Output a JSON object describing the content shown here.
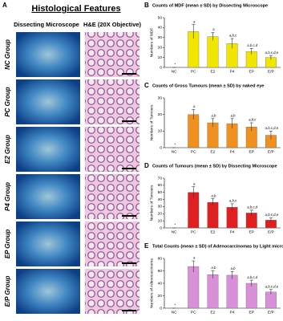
{
  "figure": {
    "panel": "A",
    "title": "Histological Features",
    "col_headers": [
      "Dissecting Microscope",
      "H&E (20X Objective)"
    ],
    "groups": [
      "NC Group",
      "PC Group",
      "E2 Group",
      "P4 Group",
      "EP Group",
      "E/P Group"
    ]
  },
  "chart_data": [
    {
      "type": "bar",
      "panel": "B",
      "title": "Counts of MDF (mean ± SD) by Dissecting Microscope",
      "y_label": "Numbers of MDF",
      "categories": [
        "NC",
        "PC",
        "E2",
        "P4",
        "EP",
        "E/P"
      ],
      "values": [
        0,
        36,
        31,
        24,
        16,
        10
      ],
      "errors": [
        0,
        7,
        4,
        5,
        3,
        2
      ],
      "bar_labels": [
        "*",
        "a",
        "a",
        "a,b,c",
        "a,b,c,d",
        "a,b,c,d,e"
      ],
      "color": "#f2e600",
      "ylim": [
        0,
        50
      ],
      "yticks": [
        0,
        10,
        20,
        30,
        40,
        50
      ]
    },
    {
      "type": "bar",
      "panel": "C",
      "title": "Counts of Gross Tumours (mean ± SD) by naked eye",
      "y_label": "Numbers of Tumours",
      "categories": [
        "NC",
        "PC",
        "E2",
        "P4",
        "EP",
        "E/P"
      ],
      "values": [
        0,
        20,
        15,
        14.5,
        12.5,
        7.5
      ],
      "errors": [
        0,
        3,
        2.5,
        3,
        2.5,
        2.5
      ],
      "bar_labels": [
        "*",
        "a",
        "a,b",
        "a,b",
        "a,b,c",
        "a,b,c,d,e"
      ],
      "color": "#f0901e",
      "ylim": [
        0,
        30
      ],
      "yticks": [
        0,
        10,
        20,
        30
      ]
    },
    {
      "type": "bar",
      "panel": "D",
      "title": "Counts of Tumours (mean ± SD) by Dissecting Microscope",
      "y_label": "Numbers of Tumours",
      "categories": [
        "NC",
        "PC",
        "E2",
        "P4",
        "EP",
        "E/P"
      ],
      "values": [
        0,
        50,
        36,
        29,
        21,
        11
      ],
      "errors": [
        0,
        8,
        5,
        5,
        4,
        3
      ],
      "bar_labels": [
        "*",
        "a",
        "a,b",
        "a,b,c",
        "a,b,c,d",
        "a,b,c,d,e"
      ],
      "color": "#e02020",
      "ylim": [
        0,
        70
      ],
      "yticks": [
        0,
        10,
        20,
        30,
        40,
        50,
        60,
        70
      ]
    },
    {
      "type": "bar",
      "panel": "E",
      "title": "Total Counts (mean ± SD) of Adenocarcinomas by Light microscope",
      "y_label": "Numbers of Adenocarcinoma",
      "categories": [
        "NC",
        "PC",
        "E2",
        "P4",
        "EP",
        "E/P"
      ],
      "values": [
        0,
        67,
        54,
        53,
        40,
        26
      ],
      "errors": [
        0,
        9,
        6,
        6,
        5,
        4
      ],
      "bar_labels": [
        "*",
        "a",
        "a,b",
        "a,b",
        "a,b,c,d",
        "a,b,c,d,e"
      ],
      "color": "#d890d8",
      "ylim": [
        0,
        80
      ],
      "yticks": [
        0,
        20,
        40,
        60,
        80
      ]
    }
  ]
}
